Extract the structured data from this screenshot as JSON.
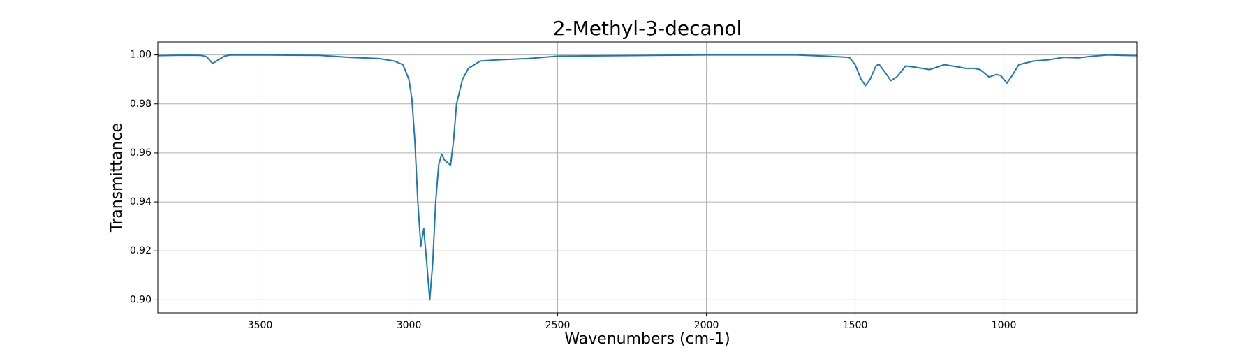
{
  "chart_data": {
    "type": "line",
    "title": "2-Methyl-3-decanol",
    "xlabel": "Wavenumbers (cm-1)",
    "ylabel": "Transmittance",
    "color": "#1f77b4",
    "grid": true,
    "xlim": [
      3844,
      553
    ],
    "ylim": [
      0.8947,
      1.0053
    ],
    "xticks": [
      3500,
      3000,
      2500,
      2000,
      1500,
      1000
    ],
    "yticks": [
      {
        "value": 0.9,
        "label": "0.90"
      },
      0.92,
      0.94,
      0.96,
      0.98,
      {
        "value": 1,
        "label": "1.00"
      }
    ],
    "x": [
      3844,
      3750,
      3700,
      3680,
      3660,
      3640,
      3620,
      3600,
      3400,
      3300,
      3200,
      3100,
      3050,
      3020,
      3000,
      2990,
      2980,
      2970,
      2960,
      2950,
      2940,
      2930,
      2920,
      2910,
      2900,
      2890,
      2880,
      2860,
      2850,
      2840,
      2820,
      2800,
      2760,
      2700,
      2600,
      2500,
      2000,
      1700,
      1600,
      1520,
      1500,
      1480,
      1465,
      1450,
      1430,
      1420,
      1400,
      1380,
      1360,
      1330,
      1300,
      1250,
      1200,
      1150,
      1130,
      1100,
      1080,
      1050,
      1025,
      1010,
      990,
      970,
      950,
      900,
      850,
      800,
      750,
      700,
      650,
      600,
      553
    ],
    "values": [
      0.9997,
      0.9999,
      0.9998,
      0.9993,
      0.9965,
      0.998,
      0.9995,
      1.0,
      0.9999,
      0.9998,
      0.999,
      0.9985,
      0.9975,
      0.996,
      0.99,
      0.982,
      0.965,
      0.94,
      0.922,
      0.929,
      0.915,
      0.9,
      0.915,
      0.94,
      0.955,
      0.9595,
      0.957,
      0.955,
      0.965,
      0.98,
      0.99,
      0.9945,
      0.9975,
      0.998,
      0.9985,
      0.9995,
      1.0,
      1.0,
      0.9995,
      0.999,
      0.996,
      0.99,
      0.9875,
      0.99,
      0.9955,
      0.9962,
      0.993,
      0.9895,
      0.991,
      0.9955,
      0.995,
      0.994,
      0.996,
      0.995,
      0.9945,
      0.9945,
      0.994,
      0.991,
      0.992,
      0.9915,
      0.9885,
      0.992,
      0.996,
      0.9975,
      0.998,
      0.999,
      0.9988,
      0.9995,
      1.0,
      0.9998,
      0.9997
    ]
  }
}
